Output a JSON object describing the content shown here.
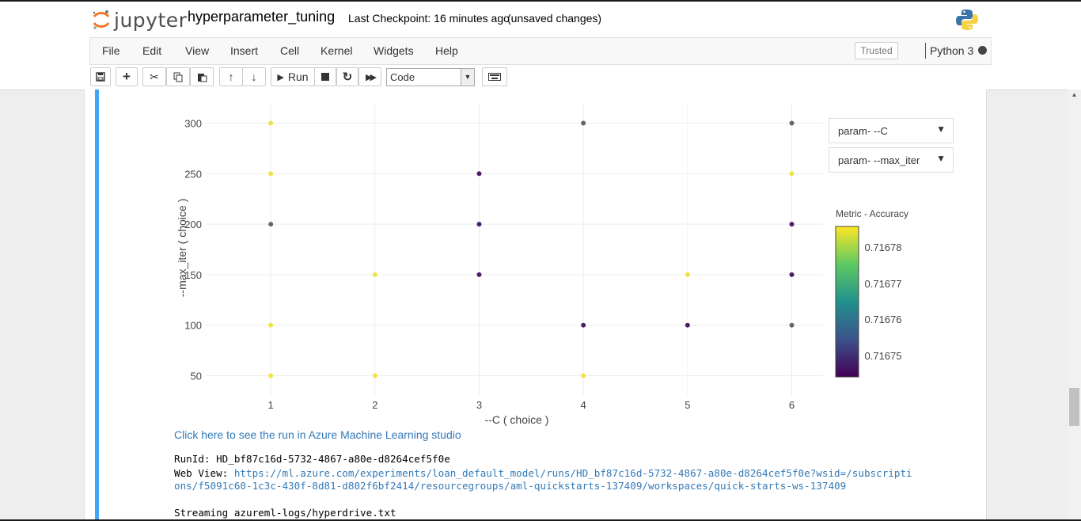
{
  "header": {
    "logo_text": "jupyter",
    "notebook_title": "hyperparameter_tuning",
    "checkpoint": "Last Checkpoint: 16 minutes ago",
    "unsaved": "(unsaved changes)"
  },
  "menu": [
    "File",
    "Edit",
    "View",
    "Insert",
    "Cell",
    "Kernel",
    "Widgets",
    "Help"
  ],
  "trusted_label": "Trusted",
  "kernel_label": "Python 3",
  "toolbar": {
    "run_label": "Run",
    "cell_type": "Code",
    "icons": [
      "save-icon",
      "plus-icon",
      "cut-icon",
      "copy-icon",
      "paste-icon",
      "arrow-up-icon",
      "arrow-down-icon",
      "run-icon",
      "stop-icon",
      "restart-icon",
      "fast-forward-icon",
      "keyboard-icon"
    ]
  },
  "dropdowns": [
    "param- --C",
    "param- --max_iter"
  ],
  "chart_data": {
    "type": "scatter",
    "xlabel": "--C ( choice )",
    "ylabel": "--max_iter ( choice )",
    "x_ticks": [
      "1",
      "2",
      "3",
      "4",
      "5",
      "6"
    ],
    "y_ticks": [
      "50",
      "100",
      "150",
      "200",
      "250",
      "300"
    ],
    "xlim": [
      0.3,
      6.3
    ],
    "ylim": [
      30,
      320
    ],
    "colorbar": {
      "title": "Metric - Accuracy",
      "ticks": [
        "0.71678",
        "0.71677",
        "0.71676",
        "0.71675"
      ],
      "colors": [
        "#fde725",
        "#5ec962",
        "#21918c",
        "#3b528b",
        "#440154"
      ]
    },
    "points": [
      {
        "x": 1,
        "y": 300,
        "color": "#f0e442"
      },
      {
        "x": 1,
        "y": 250,
        "color": "#f0e442"
      },
      {
        "x": 1,
        "y": 200,
        "color": "#666666"
      },
      {
        "x": 1,
        "y": 100,
        "color": "#f0e442"
      },
      {
        "x": 1,
        "y": 50,
        "color": "#f0e442"
      },
      {
        "x": 2,
        "y": 150,
        "color": "#f0e442"
      },
      {
        "x": 2,
        "y": 50,
        "color": "#f0e442"
      },
      {
        "x": 3,
        "y": 250,
        "color": "#4b1d6b"
      },
      {
        "x": 3,
        "y": 200,
        "color": "#4b1d6b"
      },
      {
        "x": 3,
        "y": 150,
        "color": "#4b1d6b"
      },
      {
        "x": 4,
        "y": 300,
        "color": "#666666"
      },
      {
        "x": 4,
        "y": 100,
        "color": "#4b1d6b"
      },
      {
        "x": 4,
        "y": 50,
        "color": "#f0e442"
      },
      {
        "x": 5,
        "y": 150,
        "color": "#f0e442"
      },
      {
        "x": 5,
        "y": 100,
        "color": "#4b1d6b"
      },
      {
        "x": 6,
        "y": 300,
        "color": "#666666"
      },
      {
        "x": 6,
        "y": 250,
        "color": "#f0e442"
      },
      {
        "x": 6,
        "y": 200,
        "color": "#4b1d6b"
      },
      {
        "x": 6,
        "y": 150,
        "color": "#4b1d6b"
      },
      {
        "x": 6,
        "y": 100,
        "color": "#666666"
      }
    ]
  },
  "output": {
    "link_text": "Click here to see the run in Azure Machine Learning studio",
    "runid": "RunId: HD_bf87c16d-5732-4867-a80e-d8264cef5f0e",
    "webview_label": "Web View: ",
    "webview_url_1": "https://ml.azure.com/experiments/loan_default_model/runs/HD_bf87c16d-5732-4867-a80e-d8264cef5f0e?wsid=/subscripti",
    "webview_url_2": "ons/f5091c60-1c3c-430f-8d81-d802f6bf2414/resourcegroups/aml-quickstarts-137409/workspaces/quick-starts-ws-137409",
    "streaming": "Streaming azureml-logs/hyperdrive.txt"
  }
}
